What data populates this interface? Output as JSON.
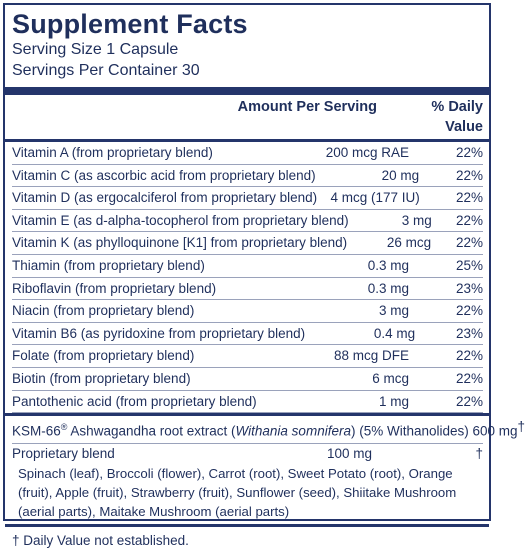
{
  "title": "Supplement Facts",
  "serving_size": "Serving Size 1 Capsule",
  "servings_per_container": "Servings Per Container 30",
  "header": {
    "amount": "Amount Per Serving",
    "dv": "% Daily Value"
  },
  "nutrients": [
    {
      "name": "Vitamin A (from proprietary blend)",
      "amount": "200 mcg RAE",
      "dv": "22%"
    },
    {
      "name": "Vitamin C (as ascorbic acid from proprietary blend)",
      "amount": "20 mg",
      "dv": "22%"
    },
    {
      "name": "Vitamin D (as ergocalciferol from proprietary blend)",
      "amount": "4 mcg (177 IU)",
      "dv": "22%"
    },
    {
      "name": "Vitamin E (as d-alpha-tocopherol from proprietary blend)",
      "amount": "3 mg",
      "dv": "22%"
    },
    {
      "name": "Vitamin K (as phylloquinone [K1] from proprietary blend)",
      "amount": "26 mcg",
      "dv": "22%"
    },
    {
      "name": "Thiamin (from proprietary blend)",
      "amount": "0.3 mg",
      "dv": "25%"
    },
    {
      "name": "Riboflavin (from proprietary blend)",
      "amount": "0.3 mg",
      "dv": "23%"
    },
    {
      "name": "Niacin (from proprietary blend)",
      "amount": "3 mg",
      "dv": "22%"
    },
    {
      "name": "Vitamin B6 (as pyridoxine from proprietary blend)",
      "amount": "0.4 mg",
      "dv": "23%"
    },
    {
      "name": "Folate (from proprietary blend)",
      "amount": "88 mcg DFE",
      "dv": "22%"
    },
    {
      "name": "Biotin (from proprietary blend)",
      "amount": "6 mcg",
      "dv": "22%"
    },
    {
      "name": "Pantothenic acid (from proprietary blend)",
      "amount": "1 mg",
      "dv": "22%"
    }
  ],
  "ksm": {
    "name_prefix": "KSM-66",
    "reg_mark": "®",
    "name_mid": " Ashwagandha root extract (",
    "latin": "Withania somnifera",
    "name_suffix": ") (5% Withanolides) 600 mg",
    "dv": "†"
  },
  "proprietary": {
    "name": "Proprietary blend",
    "amount": "100 mg",
    "dv": "†",
    "ingredients": "Spinach (leaf), Broccoli (flower), Carrot (root), Sweet Potato (root), Orange (fruit), Apple (fruit), Strawberry (fruit), Sunflower (seed), Shiitake Mushroom (aerial parts), Maitake Mushroom (aerial parts)"
  },
  "footnote": "† Daily Value not established."
}
